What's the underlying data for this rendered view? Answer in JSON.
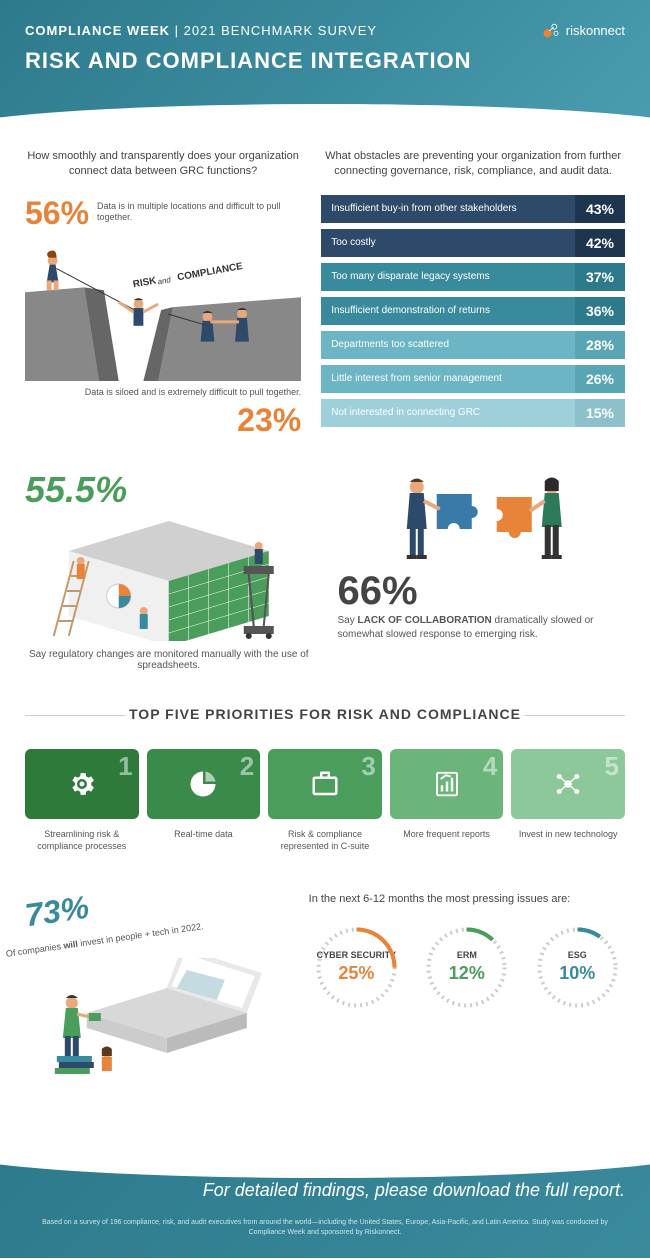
{
  "header": {
    "brand_bold": "COMPLIANCE WEEK",
    "brand_rest": " | 2021 BENCHMARK SURVEY",
    "logo_text": "riskonnect",
    "title": "RISK AND COMPLIANCE INTEGRATION"
  },
  "section1": {
    "q_left": "How smoothly and transparently does your organization connect data between GRC functions?",
    "stat1_pct": "56%",
    "stat1_label": "Data is in multiple locations and difficult to pull together.",
    "cliff_label": "RISK and COMPLIANCE",
    "stat2_pct": "23%",
    "stat2_label": "Data is siloed and is extremely difficult to pull together.",
    "q_right": "What obstacles are preventing your organization from further connecting governance, risk, compliance, and audit data.",
    "bars": [
      {
        "label": "Insufficient buy-in from other stakeholders",
        "pct": "43%",
        "bg": "#2d4a6b",
        "pbg": "#1e3550"
      },
      {
        "label": "Too costly",
        "pct": "42%",
        "bg": "#2d4a6b",
        "pbg": "#1e3550"
      },
      {
        "label": "Too many disparate legacy systems",
        "pct": "37%",
        "bg": "#3a8a9d",
        "pbg": "#2d7a8c"
      },
      {
        "label": "Insufficient demonstration of returns",
        "pct": "36%",
        "bg": "#3a8a9d",
        "pbg": "#2d7a8c"
      },
      {
        "label": "Departments too scattered",
        "pct": "28%",
        "bg": "#6bb5c4",
        "pbg": "#5aa5b4"
      },
      {
        "label": "Little interest from senior management",
        "pct": "26%",
        "bg": "#6bb5c4",
        "pbg": "#5aa5b4"
      },
      {
        "label": "Not interested in connecting GRC",
        "pct": "15%",
        "bg": "#9dd0db",
        "pbg": "#8cc0cb"
      }
    ]
  },
  "section2": {
    "left_pct": "55.5%",
    "left_text": "Say regulatory changes are monitored manually with the use of spreadsheets.",
    "right_pct": "66%",
    "right_text_pre": "Say ",
    "right_text_bold": "LACK OF COLLABORATION",
    "right_text_post": " dramatically slowed or somewhat slowed response to emerging risk."
  },
  "divider": "TOP FIVE PRIORITIES FOR RISK AND COMPLIANCE",
  "priorities": [
    {
      "num": "1",
      "label": "Streamlining risk & compliance processes",
      "bg": "#2d7a3a",
      "icon": "gear"
    },
    {
      "num": "2",
      "label": "Real-time data",
      "bg": "#3a8a4a",
      "icon": "pie"
    },
    {
      "num": "3",
      "label": "Risk & compliance represented in C-suite",
      "bg": "#4a9d5a",
      "icon": "briefcase"
    },
    {
      "num": "4",
      "label": "More frequent reports",
      "bg": "#6bb57a",
      "icon": "report"
    },
    {
      "num": "5",
      "label": "Invest in new technology",
      "bg": "#8cc89a",
      "icon": "network"
    }
  ],
  "section4": {
    "left_pct": "73%",
    "left_sub_pre": "Of companies ",
    "left_sub_bold": "will",
    "left_sub_post": " invest in people + tech in 2022.",
    "right_title": "In the next 6-12 months the most pressing issues are:",
    "circles": [
      {
        "label": "CYBER SECURITY",
        "pct": "25%",
        "color": "#e8833a",
        "fill": 0.25
      },
      {
        "label": "ERM",
        "pct": "12%",
        "color": "#4a9d5a",
        "fill": 0.12
      },
      {
        "label": "ESG",
        "pct": "10%",
        "color": "#3a8a9d",
        "fill": 0.1
      }
    ]
  },
  "footer": {
    "main": "For detailed findings, please download the full report.",
    "fine": "Based on a survey of 196 compliance, risk, and audit executives from around the world—including the United States, Europe, Asia-Pacific, and Latin America. Study was conducted by Compliance Week and sponsored by Riskonnect."
  }
}
